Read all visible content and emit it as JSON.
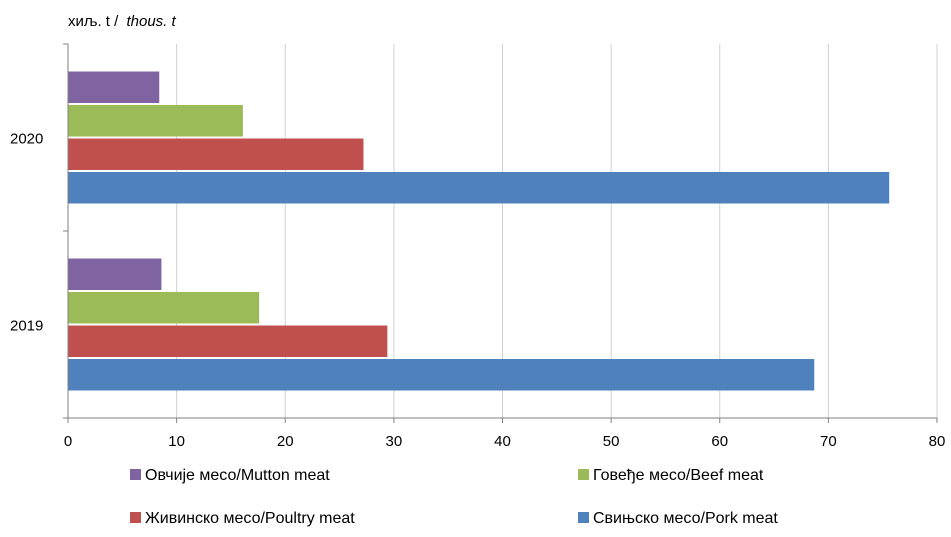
{
  "chart_data": {
    "type": "bar",
    "orientation": "horizontal",
    "unit_label": {
      "cyrillic": "хиљ. t /",
      "latin": "thous. t"
    },
    "categories": [
      "2020",
      "2019"
    ],
    "series": [
      {
        "name": "Овчије месо/Mutton meat",
        "color": "#8064A2",
        "values": [
          8.4,
          8.6
        ]
      },
      {
        "name": "Говеђе месо/Beef meat",
        "color": "#9BBB59",
        "values": [
          16.1,
          17.6
        ]
      },
      {
        "name": "Живинско месо/Poultry meat",
        "color": "#C0504D",
        "values": [
          27.2,
          29.4
        ]
      },
      {
        "name": "Свињско месо/Pork meat",
        "color": "#4F81BD",
        "values": [
          75.6,
          68.7
        ]
      }
    ],
    "xlim": [
      0,
      80
    ],
    "xticks": [
      0,
      10,
      20,
      30,
      40,
      50,
      60,
      70,
      80
    ],
    "grid": true,
    "legend_position": "bottom"
  }
}
